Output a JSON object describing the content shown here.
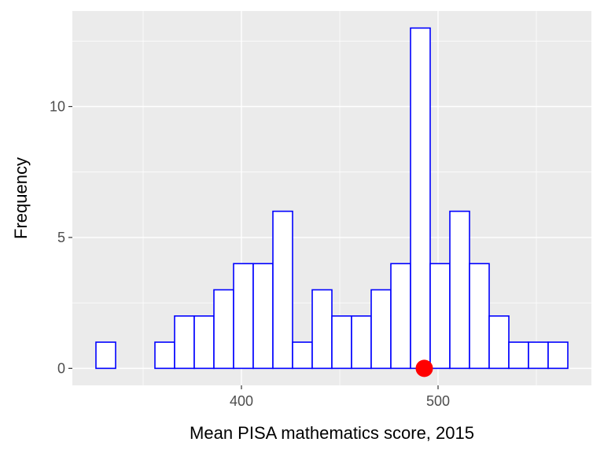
{
  "chart_data": {
    "type": "bar",
    "xlabel": "Mean PISA mathematics score, 2015",
    "ylabel": "Frequency",
    "title": "",
    "xlim": [
      326,
      566
    ],
    "ylim": [
      -0.65,
      13.65
    ],
    "x_ticks": [
      400,
      500
    ],
    "x_tick_labels": [
      "400",
      "500"
    ],
    "y_ticks": [
      0,
      5,
      10
    ],
    "y_tick_labels": [
      "0",
      "5",
      "10"
    ],
    "bin_width": 10,
    "bins": [
      {
        "x0": 326,
        "x1": 336,
        "count": 1
      },
      {
        "x0": 336,
        "x1": 346,
        "count": 0
      },
      {
        "x0": 346,
        "x1": 356,
        "count": 0
      },
      {
        "x0": 356,
        "x1": 366,
        "count": 1
      },
      {
        "x0": 366,
        "x1": 376,
        "count": 2
      },
      {
        "x0": 376,
        "x1": 386,
        "count": 2
      },
      {
        "x0": 386,
        "x1": 396,
        "count": 3
      },
      {
        "x0": 396,
        "x1": 406,
        "count": 4
      },
      {
        "x0": 406,
        "x1": 416,
        "count": 4
      },
      {
        "x0": 416,
        "x1": 426,
        "count": 6
      },
      {
        "x0": 426,
        "x1": 436,
        "count": 1
      },
      {
        "x0": 436,
        "x1": 446,
        "count": 3
      },
      {
        "x0": 446,
        "x1": 456,
        "count": 2
      },
      {
        "x0": 456,
        "x1": 466,
        "count": 2
      },
      {
        "x0": 466,
        "x1": 476,
        "count": 3
      },
      {
        "x0": 476,
        "x1": 486,
        "count": 4
      },
      {
        "x0": 486,
        "x1": 496,
        "count": 13
      },
      {
        "x0": 496,
        "x1": 506,
        "count": 4
      },
      {
        "x0": 506,
        "x1": 516,
        "count": 6
      },
      {
        "x0": 516,
        "x1": 526,
        "count": 4
      },
      {
        "x0": 526,
        "x1": 536,
        "count": 2
      },
      {
        "x0": 536,
        "x1": 546,
        "count": 1
      },
      {
        "x0": 546,
        "x1": 556,
        "count": 1
      },
      {
        "x0": 556,
        "x1": 566,
        "count": 1
      }
    ],
    "marker_point": {
      "x": 493,
      "y": 0
    },
    "grid": true,
    "colors": {
      "panel_background": "#ebebeb",
      "grid_major": "#ffffff",
      "bar_fill": "#ffffff",
      "bar_outline": "#0000ff",
      "marker": "#ff0000"
    }
  }
}
